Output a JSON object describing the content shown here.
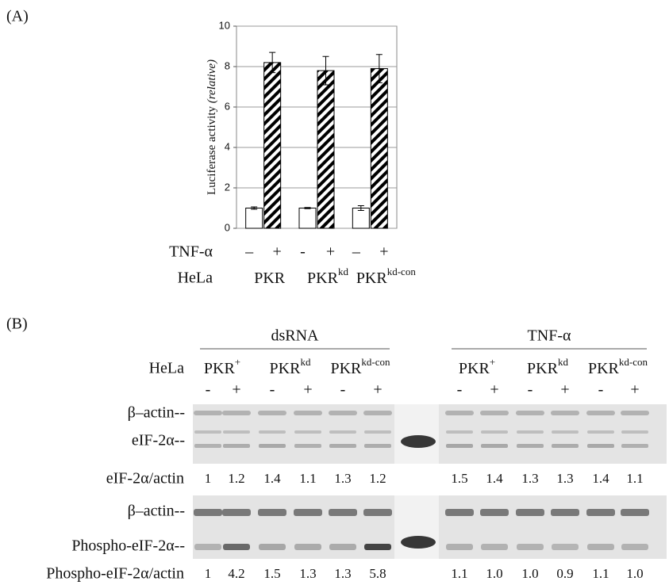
{
  "chart_data": {
    "type": "bar",
    "panel_label": "(A)",
    "y_label": "Luciferase activity ",
    "y_label_italic": "(relative)",
    "ylim": [
      0,
      10
    ],
    "yticks": [
      0,
      2,
      4,
      6,
      8,
      10
    ],
    "grid": true,
    "categories": [
      "PKR",
      "PKR",
      "PKR"
    ],
    "category_superscripts": [
      null,
      "kd",
      "kd-con"
    ],
    "treatment_label": "TNF-α",
    "treatment_signs": [
      "–",
      "+",
      "-",
      "+",
      "–",
      "+"
    ],
    "cell_label": "HeLa",
    "series": [
      {
        "color": "#ffffff",
        "values": [
          1.0,
          1.0,
          1.0
        ],
        "errors": [
          0.06,
          0.03,
          0.12
        ]
      },
      {
        "color": "#000000",
        "hatch": true,
        "values": [
          8.2,
          7.8,
          7.9
        ],
        "errors": [
          0.5,
          0.7,
          0.7
        ]
      }
    ]
  },
  "blot": {
    "panel_label": "(B)",
    "cell_label": "HeLa",
    "groups": [
      {
        "label": "dsRNA",
        "headers": [
          {
            "name": "PKR",
            "sup": "+"
          },
          {
            "name": "PKR",
            "sup": "kd"
          },
          {
            "name": "PKR",
            "sup": "kd-con"
          }
        ],
        "signs": [
          "-",
          "+",
          "-",
          "+",
          "-",
          "+"
        ]
      },
      {
        "label": "TNF-α",
        "headers": [
          {
            "name": "PKR",
            "sup": "+"
          },
          {
            "name": "PKR",
            "sup": "kd"
          },
          {
            "name": "PKR",
            "sup": "kd-con"
          }
        ],
        "signs": [
          "-",
          "+",
          "-",
          "+",
          "-",
          "+"
        ]
      }
    ],
    "panels": [
      {
        "band_labels": [
          "β–actin--",
          "eIF-2α--"
        ],
        "ratio_label": "eIF-2α/actin",
        "ratios": [
          [
            "1",
            "1.2",
            "1.4",
            "1.1",
            "1.3",
            "1.2"
          ],
          [
            "1.5",
            "1.4",
            "1.3",
            "1.3",
            "1.4",
            "1.1"
          ]
        ]
      },
      {
        "band_labels": [
          "β–actin--",
          "Phospho-eIF-2α--"
        ],
        "ratio_label": "Phospho-eIF-2α/actin",
        "ratios": [
          [
            "1",
            "4.2",
            "1.5",
            "1.3",
            "1.3",
            "5.8"
          ],
          [
            "1.1",
            "1.0",
            "1.0",
            "0.9",
            "1.1",
            "1.0"
          ]
        ]
      }
    ]
  }
}
